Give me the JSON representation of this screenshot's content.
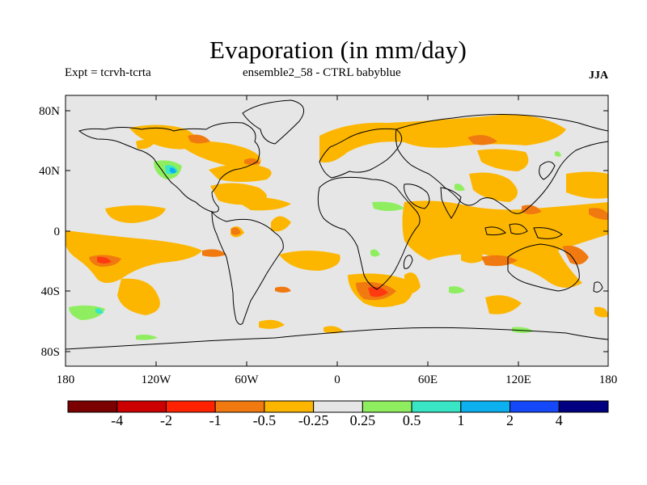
{
  "header": {
    "title": "Evaporation (in mm/day)",
    "left_label": "Expt = tcrvh-tcrta",
    "center_label": "ensemble2_58 - CTRL babyblue",
    "season": "JJA"
  },
  "map": {
    "lat_ticks": [
      "80N",
      "40N",
      "0",
      "40S",
      "80S"
    ],
    "lon_ticks": [
      "180",
      "120W",
      "60W",
      "0",
      "60E",
      "120E",
      "180"
    ]
  },
  "colorbar": {
    "colors": [
      "#7b0000",
      "#cc0000",
      "#ff2200",
      "#f07a10",
      "#fdb600",
      "#e6e6e6",
      "#8fee60",
      "#38e6c6",
      "#0cb0ee",
      "#1448f8",
      "#000080"
    ],
    "labels": [
      "-4",
      "-2",
      "-1",
      "-0.5",
      "-0.25",
      "0.25",
      "0.5",
      "1",
      "2",
      "4"
    ]
  },
  "colors": {
    "background": "#e6e6e6",
    "neg_small": "#fdb600",
    "neg_medium": "#f07a10",
    "neg_large": "#ff3a10",
    "pos_small": "#8fee60",
    "pos_medium": "#38e6c6",
    "pos_large": "#0cb0ee"
  }
}
